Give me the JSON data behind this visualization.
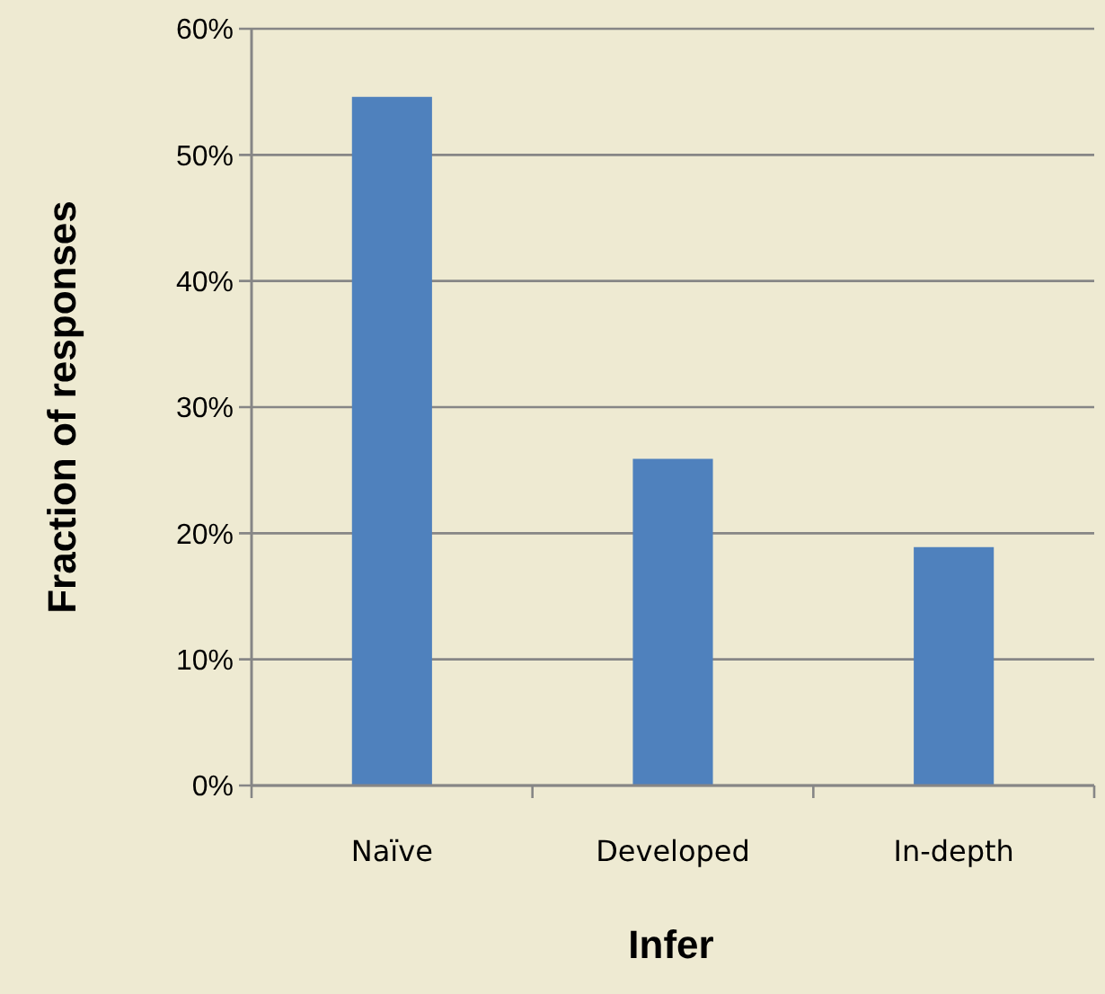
{
  "chart_data": {
    "type": "bar",
    "xlabel": "Infer",
    "ylabel": "Fraction of responses",
    "categories": [
      "Naïve",
      "Developed",
      "In-depth"
    ],
    "values": [
      54.6,
      25.9,
      18.9
    ],
    "color": "#4f81bd",
    "ylim": [
      0,
      60
    ],
    "yticks": [
      {
        "value": 0,
        "label": "0%"
      },
      {
        "value": 10,
        "label": "10%"
      },
      {
        "value": 20,
        "label": "20%"
      },
      {
        "value": 30,
        "label": "30%"
      },
      {
        "value": 40,
        "label": "40%"
      },
      {
        "value": 50,
        "label": "50%"
      },
      {
        "value": 60,
        "label": "60%"
      }
    ],
    "grid": "y"
  }
}
